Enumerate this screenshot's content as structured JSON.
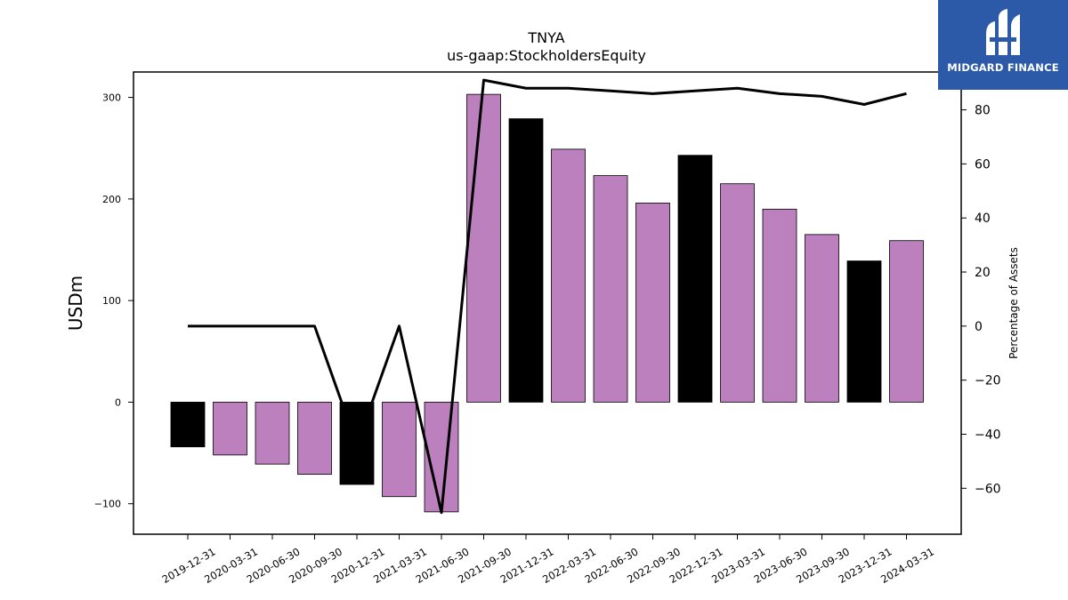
{
  "logo": {
    "text": "MIDGARD FINANCE"
  },
  "colors": {
    "bar_default": "#bb80bd",
    "bar_highlight": "#000000",
    "line": "#000000",
    "logo_bg": "#2c5aa8"
  },
  "chart_data": {
    "type": "bar",
    "title": "TNYA",
    "subtitle": "us-gaap:StockholdersEquity",
    "ylabel": "USDm",
    "y2label": "Percentage of Assets",
    "categories": [
      "2019-12-31",
      "2020-03-31",
      "2020-06-30",
      "2020-09-30",
      "2020-12-31",
      "2021-03-31",
      "2021-06-30",
      "2021-09-30",
      "2021-12-31",
      "2022-03-31",
      "2022-06-30",
      "2022-09-30",
      "2022-12-31",
      "2023-03-31",
      "2023-06-30",
      "2023-09-30",
      "2023-12-31",
      "2024-03-31"
    ],
    "series": [
      {
        "values": [
          -44,
          -52,
          -61,
          -71,
          -81,
          -93,
          -108,
          303,
          279,
          249,
          223,
          196,
          243,
          215,
          190,
          165,
          139,
          159
        ],
        "highlight": [
          true,
          false,
          false,
          false,
          true,
          false,
          false,
          false,
          true,
          false,
          false,
          false,
          true,
          false,
          false,
          false,
          true,
          false
        ]
      },
      {
        "axis": "right",
        "type": "line",
        "values": [
          0,
          0,
          0,
          0,
          -44,
          0,
          -69,
          91,
          88,
          88,
          87,
          86,
          87,
          88,
          86,
          85,
          82,
          86
        ]
      }
    ],
    "ylim": [
      -130,
      325
    ],
    "y2lim": [
      -77,
      94
    ],
    "yticks": [
      -100,
      0,
      100,
      200,
      300
    ],
    "y2ticks": [
      -60,
      -40,
      -20,
      0,
      20,
      40,
      60,
      80
    ],
    "grid": false,
    "legend": "none"
  }
}
